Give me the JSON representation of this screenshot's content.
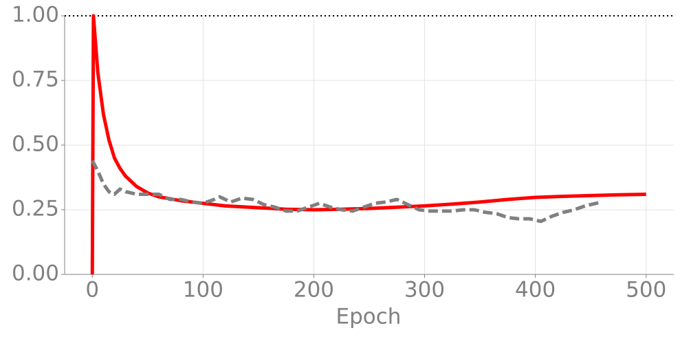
{
  "chart_data": {
    "type": "line",
    "xlabel": "Epoch",
    "xlim": [
      -25,
      525
    ],
    "ylim": [
      0,
      1
    ],
    "xticks": [
      0,
      100,
      200,
      300,
      400,
      500
    ],
    "yticks": [
      {
        "value": 0,
        "label": "0.00"
      },
      {
        "value": 0.25,
        "label": "0.25"
      },
      {
        "value": 0.5,
        "label": "0.50"
      },
      {
        "value": 0.75,
        "label": "0.75"
      },
      {
        "value": 1,
        "label": "1.00"
      }
    ],
    "grid": true,
    "hline": 1,
    "series": [
      {
        "color": "#ff0000",
        "linestyle": "solid",
        "x": [
          0,
          1,
          5,
          10,
          15,
          20,
          25,
          30,
          40,
          50,
          60,
          80,
          100,
          120,
          150,
          175,
          200,
          225,
          250,
          275,
          300,
          325,
          350,
          375,
          400,
          425,
          450,
          475,
          500
        ],
        "values": [
          0,
          1,
          0.78,
          0.62,
          0.52,
          0.45,
          0.41,
          0.38,
          0.34,
          0.315,
          0.3,
          0.285,
          0.275,
          0.265,
          0.258,
          0.252,
          0.25,
          0.252,
          0.255,
          0.26,
          0.265,
          0.272,
          0.28,
          0.29,
          0.298,
          0.302,
          0.305,
          0.308,
          0.31
        ]
      },
      {
        "color": "#808080",
        "linestyle": "dashed",
        "x": [
          0,
          5,
          10,
          15,
          20,
          25,
          30,
          40,
          50,
          60,
          70,
          80,
          90,
          100,
          110,
          115,
          125,
          135,
          145,
          155,
          165,
          175,
          185,
          195,
          205,
          215,
          225,
          235,
          245,
          255,
          265,
          275,
          285,
          295,
          305,
          315,
          325,
          335,
          345,
          355,
          365,
          375,
          385,
          395,
          405,
          415,
          425,
          435,
          445,
          455,
          460
        ],
        "values": [
          0.44,
          0.4,
          0.35,
          0.32,
          0.31,
          0.33,
          0.32,
          0.31,
          0.31,
          0.31,
          0.29,
          0.29,
          0.28,
          0.275,
          0.29,
          0.3,
          0.28,
          0.295,
          0.29,
          0.27,
          0.26,
          0.245,
          0.245,
          0.26,
          0.275,
          0.26,
          0.25,
          0.245,
          0.26,
          0.275,
          0.28,
          0.29,
          0.27,
          0.25,
          0.245,
          0.245,
          0.245,
          0.25,
          0.25,
          0.24,
          0.235,
          0.22,
          0.215,
          0.215,
          0.205,
          0.225,
          0.24,
          0.25,
          0.265,
          0.275,
          0.28
        ]
      }
    ]
  }
}
